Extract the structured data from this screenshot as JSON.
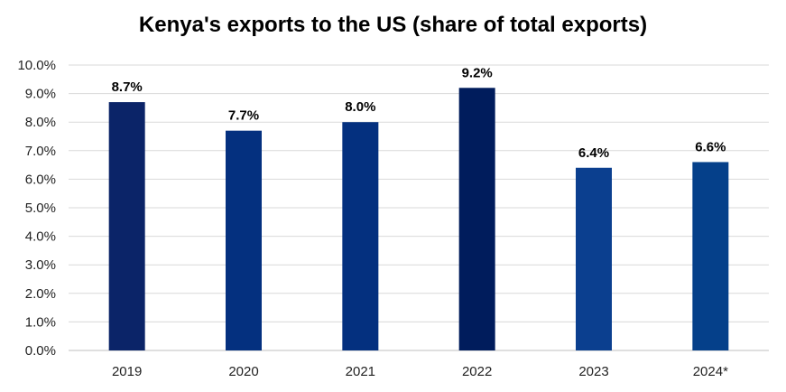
{
  "chart_data": {
    "type": "bar",
    "title": "Kenya's exports to the US (share of total exports)",
    "xlabel": "",
    "ylabel": "",
    "categories": [
      "2019",
      "2020",
      "2021",
      "2022",
      "2023",
      "2024*"
    ],
    "values": [
      8.7,
      7.7,
      8.0,
      9.2,
      6.4,
      6.6
    ],
    "data_labels": [
      "8.7%",
      "7.7%",
      "8.0%",
      "9.2%",
      "6.4%",
      "6.6%"
    ],
    "ylim": [
      0,
      10
    ],
    "yticks": [
      0,
      1,
      2,
      3,
      4,
      5,
      6,
      7,
      8,
      9,
      10
    ],
    "ytick_labels": [
      "0.0%",
      "1.0%",
      "2.0%",
      "3.0%",
      "4.0%",
      "5.0%",
      "6.0%",
      "7.0%",
      "8.0%",
      "9.0%",
      "10.0%"
    ],
    "bar_colors": [
      "#0b2468",
      "#04307f",
      "#04307f",
      "#001c5c",
      "#0b3f8f",
      "#05408a"
    ],
    "grid": true,
    "legend": "none"
  }
}
